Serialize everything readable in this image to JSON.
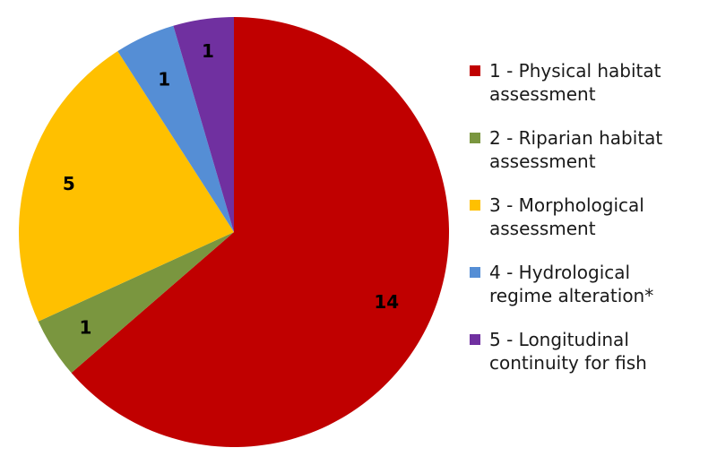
{
  "chart_data": {
    "type": "pie",
    "title": "",
    "categories": [
      "1 - Physical habitat assessment",
      "2 - Riparian habitat assessment",
      "3 - Morphological assessment",
      "4 - Hydrological regime alteration*",
      "5 - Longitudinal continuity for fish"
    ],
    "values": [
      14,
      1,
      5,
      1,
      1
    ],
    "colors": [
      "#C00000",
      "#7A963F",
      "#FFC000",
      "#558ED5",
      "#7030A0"
    ],
    "start_angle_deg": 0,
    "direction": "clockwise",
    "data_labels": [
      "14",
      "1",
      "5",
      "1",
      "1"
    ],
    "legend_position": "right"
  },
  "legend": {
    "items": [
      {
        "line1": "1 - Physical habitat",
        "line2": "assessment",
        "color": "#C00000"
      },
      {
        "line1": "2 - Riparian habitat",
        "line2": "assessment",
        "color": "#7A963F"
      },
      {
        "line1": "3 - Morphological",
        "line2": "assessment",
        "color": "#FFC000"
      },
      {
        "line1": "4 - Hydrological",
        "line2": "regime alteration*",
        "color": "#558ED5"
      },
      {
        "line1": "5 - Longitudinal",
        "line2": "continuity for fish",
        "color": "#7030A0"
      }
    ]
  }
}
